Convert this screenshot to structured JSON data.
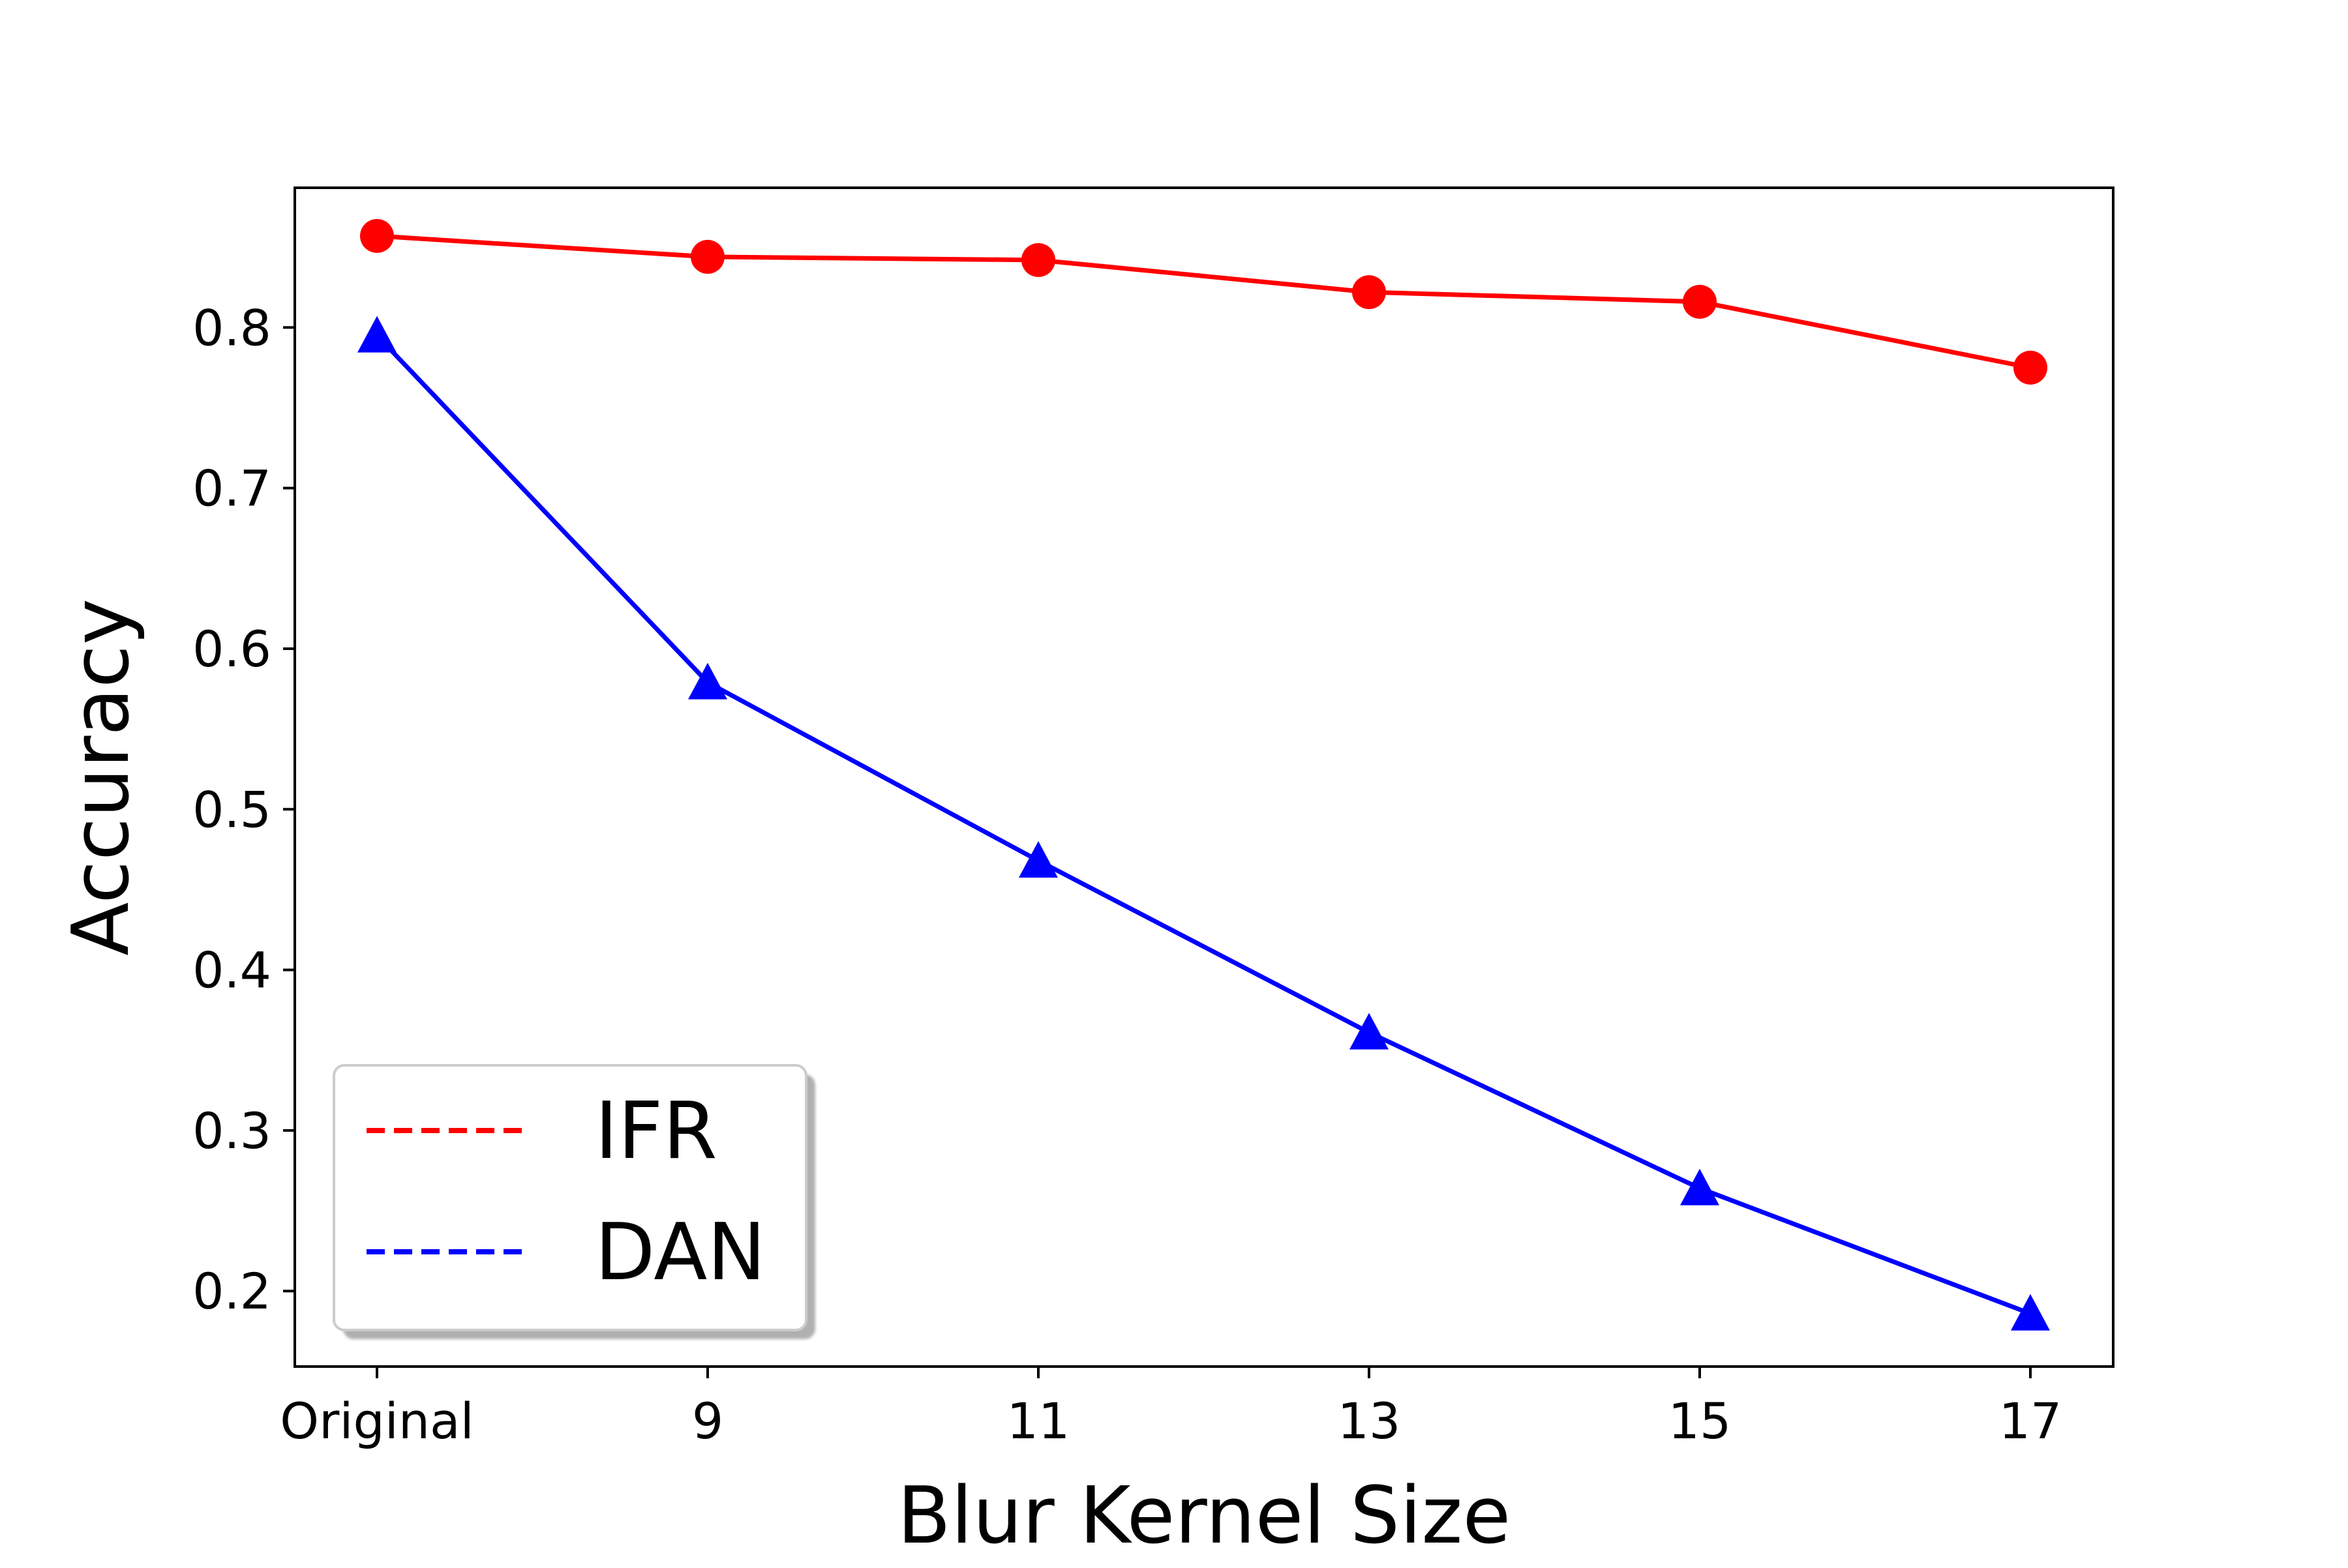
{
  "chart_data": {
    "type": "line",
    "title": "",
    "xlabel": "Blur Kernel Size",
    "ylabel": "Accuracy",
    "categories": [
      "Original",
      "9",
      "11",
      "13",
      "15",
      "17"
    ],
    "ylim": [
      0.153,
      0.887
    ],
    "yticks": [
      0.2,
      0.3,
      0.4,
      0.5,
      0.6,
      0.7,
      0.8
    ],
    "ytick_labels": [
      "0.2",
      "0.3",
      "0.4",
      "0.5",
      "0.6",
      "0.7",
      "0.8"
    ],
    "grid": false,
    "legend_position": "lower-left",
    "series": [
      {
        "name": "IFR",
        "color": "#ff0000",
        "marker": "circle",
        "legend_line_style": "dashed",
        "values": [
          0.857,
          0.844,
          0.842,
          0.822,
          0.816,
          0.775
        ]
      },
      {
        "name": "DAN",
        "color": "#0000ff",
        "marker": "triangle",
        "legend_line_style": "dashed",
        "values": [
          0.795,
          0.579,
          0.468,
          0.361,
          0.264,
          0.186
        ]
      }
    ]
  }
}
